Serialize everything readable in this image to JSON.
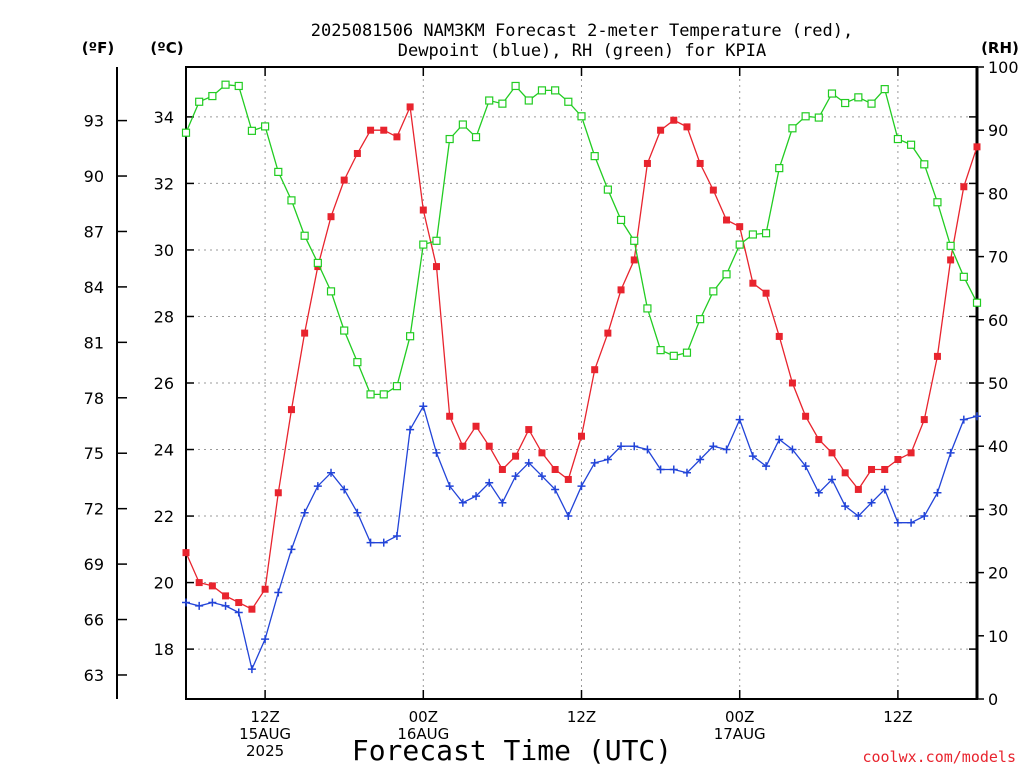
{
  "chart_data": {
    "type": "line",
    "title_line1": "2025081506 NAM3KM Forecast 2-meter Temperature (red),",
    "title_line2": "Dewpoint (blue), RH (green) for KPIA",
    "xlabel": "Forecast Time (UTC)",
    "left_outer_unit": "(ºF)",
    "left_inner_unit": "(ºC)",
    "right_unit": "(RH)",
    "credit": "coolwx.com/models",
    "x_ticks": [
      {
        "hour": 6,
        "lines": [
          "12Z",
          "15AUG",
          "2025"
        ]
      },
      {
        "hour": 18,
        "lines": [
          "00Z",
          "16AUG"
        ]
      },
      {
        "hour": 30,
        "lines": [
          "12Z"
        ]
      },
      {
        "hour": 42,
        "lines": [
          "00Z",
          "17AUG"
        ]
      },
      {
        "hour": 54,
        "lines": [
          "12Z"
        ]
      }
    ],
    "x_range": [
      0,
      60
    ],
    "celsius_axis": {
      "range": [
        16.5,
        35.5
      ],
      "ticks": [
        18,
        20,
        22,
        24,
        26,
        28,
        30,
        32,
        34
      ]
    },
    "fahrenheit_ticks": [
      63,
      66,
      69,
      72,
      75,
      78,
      81,
      84,
      87,
      90,
      93
    ],
    "rh_axis": {
      "range": [
        0,
        100
      ],
      "ticks": [
        0,
        10,
        20,
        30,
        40,
        50,
        60,
        70,
        80,
        90,
        100
      ]
    },
    "colors": {
      "temperature": "#e8242e",
      "dewpoint": "#2244d8",
      "rh": "#22cc22"
    },
    "series": [
      {
        "key": "temperature",
        "unit": "C",
        "values": [
          20.9,
          20.0,
          19.9,
          19.6,
          19.4,
          19.2,
          19.8,
          22.7,
          25.2,
          27.5,
          29.5,
          31.0,
          32.1,
          32.9,
          33.6,
          33.6,
          33.4,
          34.3,
          31.2,
          29.5,
          25.0,
          24.1,
          24.7,
          24.1,
          23.4,
          23.8,
          24.6,
          23.9,
          23.4,
          23.1,
          24.4,
          26.4,
          27.5,
          28.8,
          29.7,
          32.6,
          33.6,
          33.9,
          33.7,
          32.6,
          31.8,
          30.9,
          30.7,
          29.0,
          28.7,
          27.4,
          26.0,
          25.0,
          24.3,
          23.9,
          23.3,
          22.8,
          23.4,
          23.4,
          23.7,
          23.9,
          24.9,
          26.8,
          29.7,
          31.9,
          33.1
        ]
      },
      {
        "key": "dewpoint",
        "unit": "C",
        "values": [
          19.4,
          19.3,
          19.4,
          19.3,
          19.1,
          17.4,
          18.3,
          19.7,
          21.0,
          22.1,
          22.9,
          23.3,
          22.8,
          22.1,
          21.2,
          21.2,
          21.4,
          24.6,
          25.3,
          23.9,
          22.9,
          22.4,
          22.6,
          23.0,
          22.4,
          23.2,
          23.6,
          23.2,
          22.8,
          22.0,
          22.9,
          23.6,
          23.7,
          24.1,
          24.1,
          24.0,
          23.4,
          23.4,
          23.3,
          23.7,
          24.1,
          24.0,
          24.9,
          23.8,
          23.5,
          24.3,
          24.0,
          23.5,
          22.7,
          23.1,
          22.3,
          22.0,
          22.4,
          22.8,
          21.8,
          21.8,
          22.0,
          22.7,
          23.9,
          24.9,
          25.0
        ]
      },
      {
        "key": "rh",
        "unit": "%",
        "values": [
          89.6,
          94.5,
          95.4,
          97.2,
          97.0,
          89.9,
          90.6,
          83.4,
          78.9,
          73.3,
          69.0,
          64.5,
          58.3,
          53.3,
          48.2,
          48.2,
          49.5,
          57.4,
          71.9,
          72.5,
          88.6,
          90.9,
          88.9,
          94.7,
          94.2,
          97.0,
          94.7,
          96.3,
          96.3,
          94.5,
          92.2,
          85.9,
          80.6,
          75.8,
          72.5,
          61.8,
          55.2,
          54.3,
          54.8,
          60.1,
          64.5,
          67.2,
          71.9,
          73.5,
          73.7,
          84.0,
          90.3,
          92.2,
          92.0,
          95.8,
          94.3,
          95.2,
          94.2,
          96.5,
          88.6,
          87.7,
          84.6,
          78.6,
          71.7,
          66.8,
          62.7
        ]
      }
    ]
  }
}
